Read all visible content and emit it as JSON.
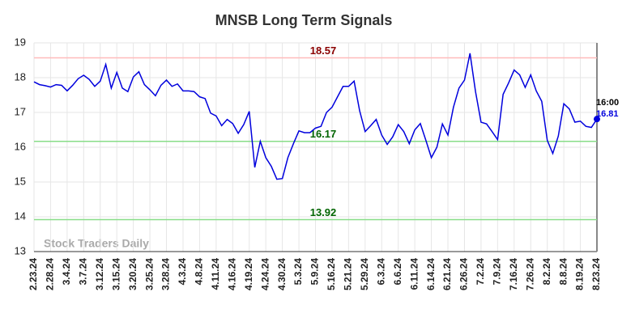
{
  "chart_data": {
    "type": "line",
    "title": "MNSB Long Term Signals",
    "watermark": "Stock Traders Daily",
    "categories": [
      "2.23.24",
      null,
      null,
      "2.28.24",
      null,
      null,
      "3.4.24",
      null,
      null,
      "3.7.24",
      null,
      null,
      "3.12.24",
      null,
      null,
      "3.15.24",
      null,
      null,
      "3.20.24",
      null,
      null,
      "3.25.24",
      null,
      null,
      "3.28.24",
      null,
      null,
      "4.3.24",
      null,
      null,
      "4.8.24",
      null,
      null,
      "4.11.24",
      null,
      null,
      "4.16.24",
      null,
      null,
      "4.19.24",
      null,
      null,
      "4.24.24",
      null,
      null,
      "4.30.24",
      null,
      null,
      "5.3.24",
      null,
      null,
      "5.9.24",
      null,
      null,
      "5.16.24",
      null,
      null,
      "5.21.24",
      null,
      null,
      "5.29.24",
      null,
      null,
      "6.3.24",
      null,
      null,
      "6.6.24",
      null,
      null,
      "6.11.24",
      null,
      null,
      "6.14.24",
      null,
      null,
      "6.21.24",
      null,
      null,
      "6.26.24",
      null,
      null,
      "7.2.24",
      null,
      null,
      "7.9.24",
      null,
      null,
      "7.16.24",
      null,
      null,
      "7.26.24",
      null,
      null,
      "8.2.24",
      null,
      null,
      "8.8.24",
      null,
      null,
      "8.19.24",
      null,
      null,
      "8.23.24"
    ],
    "values": [
      17.88,
      17.8,
      17.77,
      17.73,
      17.8,
      17.78,
      17.62,
      17.78,
      17.97,
      18.07,
      17.95,
      17.75,
      17.9,
      18.38,
      17.7,
      18.15,
      17.7,
      17.6,
      18.02,
      18.17,
      17.8,
      17.65,
      17.48,
      17.78,
      17.93,
      17.75,
      17.82,
      17.62,
      17.62,
      17.6,
      17.45,
      17.4,
      16.98,
      16.9,
      16.62,
      16.8,
      16.68,
      16.4,
      16.65,
      17.03,
      15.42,
      16.17,
      15.7,
      15.45,
      15.08,
      15.1,
      15.7,
      16.1,
      16.47,
      16.42,
      16.42,
      16.55,
      16.6,
      17.0,
      17.15,
      17.45,
      17.75,
      17.75,
      17.9,
      17.05,
      16.45,
      16.62,
      16.8,
      16.35,
      16.08,
      16.3,
      16.65,
      16.45,
      16.1,
      16.5,
      16.68,
      16.2,
      15.7,
      16.0,
      16.67,
      16.35,
      17.15,
      17.7,
      17.93,
      18.7,
      17.6,
      16.72,
      16.67,
      16.45,
      16.22,
      17.52,
      17.85,
      18.22,
      18.08,
      17.72,
      18.08,
      17.62,
      17.32,
      16.2,
      15.82,
      16.32,
      17.25,
      17.1,
      16.72,
      16.75,
      16.6,
      16.57,
      16.81
    ],
    "color": "#0000dd",
    "last_time": "16:00",
    "hlines": [
      {
        "value": 18.57,
        "color": "#ffbbbb",
        "label_color": "#8b0000"
      },
      {
        "value": 16.17,
        "color": "#88dd88",
        "label_color": "#006400"
      },
      {
        "value": 13.92,
        "color": "#88dd88",
        "label_color": "#006400"
      }
    ],
    "ylim": [
      13,
      19
    ],
    "yticks": [
      13,
      14,
      15,
      16,
      17,
      18,
      19
    ],
    "grid": true
  }
}
